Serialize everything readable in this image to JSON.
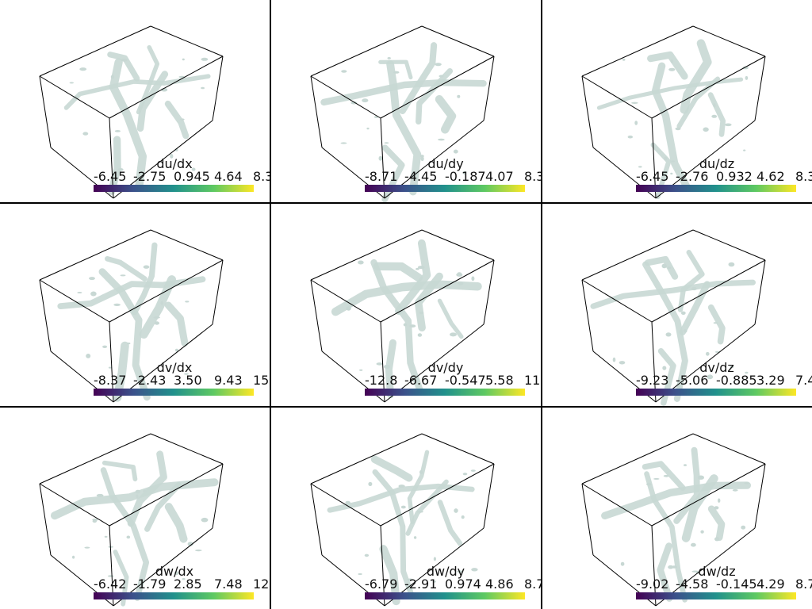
{
  "panels": [
    {
      "title": "du/dx",
      "ticks": [
        "-6.45",
        "-2.75",
        "0.945",
        "4.64",
        "8.3"
      ]
    },
    {
      "title": "du/dy",
      "ticks": [
        "-8.71",
        "-4.45",
        "-0.187",
        "4.07",
        "8.3"
      ]
    },
    {
      "title": "du/dz",
      "ticks": [
        "-6.45",
        "-2.76",
        "0.932",
        "4.62",
        "8.3"
      ]
    },
    {
      "title": "dv/dx",
      "ticks": [
        "-8.37",
        "-2.43",
        "3.50",
        "9.43",
        "15"
      ]
    },
    {
      "title": "dv/dy",
      "ticks": [
        "-12.8",
        "-6.67",
        "-0.547",
        "5.58",
        "11"
      ]
    },
    {
      "title": "dv/dz",
      "ticks": [
        "-9.23",
        "-5.06",
        "-0.885",
        "3.29",
        "7.4"
      ]
    },
    {
      "title": "dw/dx",
      "ticks": [
        "-6.42",
        "-1.79",
        "2.85",
        "7.48",
        "12"
      ]
    },
    {
      "title": "dw/dy",
      "ticks": [
        "-6.79",
        "-2.91",
        "0.974",
        "4.86",
        "8.7"
      ]
    },
    {
      "title": "dw/dz",
      "ticks": [
        "-9.02",
        "-4.58",
        "-0.145",
        "4.29",
        "8.7"
      ]
    }
  ],
  "colormap": [
    "#440154",
    "#3b528b",
    "#21918c",
    "#5ec962",
    "#fde725"
  ],
  "isosurface_color": "#c8d8d4",
  "box_color": "#000000"
}
